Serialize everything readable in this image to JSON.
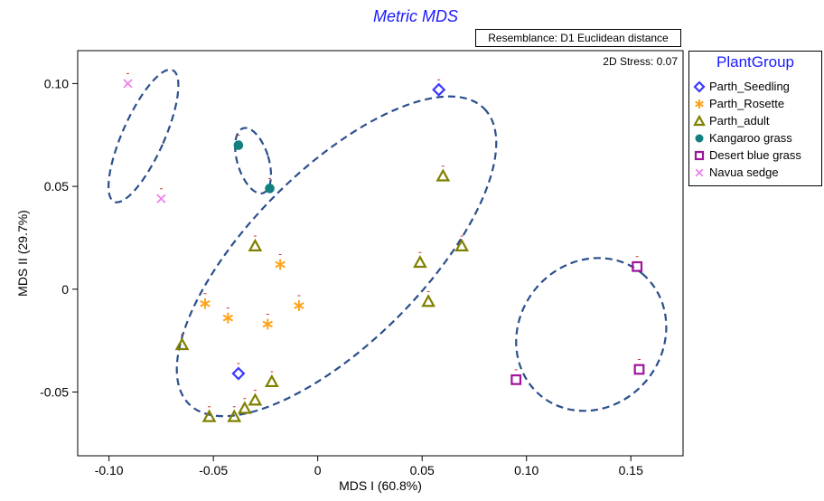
{
  "chart_data": {
    "type": "scatter",
    "title": "Metric MDS",
    "subtitle": "Resemblance: D1 Euclidean distance",
    "annotation": "2D Stress: 0.07",
    "xlabel": "MDS I (60.8%)",
    "ylabel": "MDS II (29.7%)",
    "xlim": [
      -0.115,
      0.175
    ],
    "ylim": [
      -0.081,
      0.116
    ],
    "xticks": [
      -0.1,
      -0.05,
      0,
      0.05,
      0.1,
      0.15
    ],
    "xtick_labels": [
      "-0.10",
      "-0.05",
      "0",
      "0.05",
      "0.10",
      "0.15"
    ],
    "yticks": [
      -0.05,
      0,
      0.05,
      0.1
    ],
    "ytick_labels": [
      "-0.05",
      "0",
      "0.05",
      "0.10"
    ],
    "grid": false,
    "legend_title": "PlantGroup",
    "legend_position": "right",
    "series": [
      {
        "name": "Parth_Seedling",
        "marker": "diamond",
        "color": "#3a3aff",
        "points": [
          [
            0.058,
            0.097
          ],
          [
            -0.038,
            -0.041
          ]
        ]
      },
      {
        "name": "Parth_Rosette",
        "marker": "asterisk",
        "color": "#ffa31a",
        "points": [
          [
            -0.018,
            0.012
          ],
          [
            -0.054,
            -0.007
          ],
          [
            -0.043,
            -0.014
          ],
          [
            -0.024,
            -0.017
          ],
          [
            -0.009,
            -0.008
          ]
        ]
      },
      {
        "name": "Parth_adult",
        "marker": "triangle",
        "color": "#808000",
        "points": [
          [
            0.06,
            0.055
          ],
          [
            0.049,
            0.013
          ],
          [
            0.069,
            0.021
          ],
          [
            0.053,
            -0.006
          ],
          [
            -0.03,
            0.021
          ],
          [
            -0.065,
            -0.027
          ],
          [
            -0.022,
            -0.045
          ],
          [
            -0.03,
            -0.054
          ],
          [
            -0.035,
            -0.058
          ],
          [
            -0.04,
            -0.062
          ],
          [
            -0.052,
            -0.062
          ]
        ]
      },
      {
        "name": "Kangaroo grass",
        "marker": "circle",
        "color": "#128080",
        "points": [
          [
            -0.038,
            0.07
          ],
          [
            -0.023,
            0.049
          ]
        ]
      },
      {
        "name": "Desert blue grass",
        "marker": "square",
        "color": "#a0139c",
        "points": [
          [
            0.153,
            0.011
          ],
          [
            0.154,
            -0.039
          ],
          [
            0.095,
            -0.044
          ]
        ]
      },
      {
        "name": "Navua sedge",
        "marker": "cross",
        "color": "#ee82ee",
        "points": [
          [
            -0.091,
            0.1
          ],
          [
            -0.075,
            0.044
          ]
        ]
      }
    ],
    "ellipses": [
      {
        "cx": -0.0835,
        "cy": 0.0745,
        "rx": 0.01,
        "ry": 0.035,
        "angle": 24
      },
      {
        "cx": -0.031,
        "cy": 0.0625,
        "rx": 0.0075,
        "ry": 0.0165,
        "angle": -17
      },
      {
        "cx": 0.009,
        "cy": 0.016,
        "rx": 0.1,
        "ry": 0.042,
        "angle": -45
      },
      {
        "cx": 0.131,
        "cy": -0.022,
        "rx": 0.038,
        "ry": 0.035,
        "angle": -50
      }
    ]
  }
}
